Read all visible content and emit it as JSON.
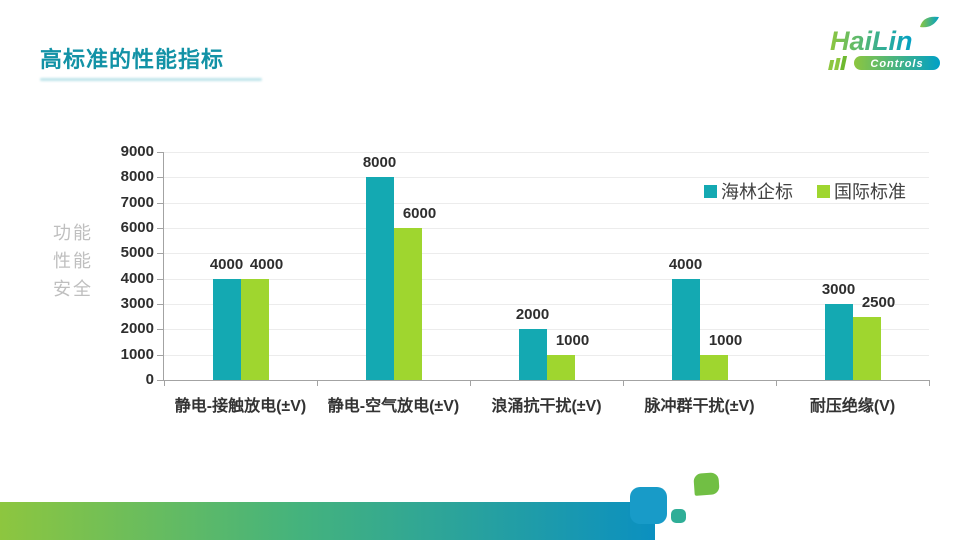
{
  "slide": {
    "title": "高标准的性能指标",
    "accent_color": "#1292a6"
  },
  "logo": {
    "brand": "HaiLin",
    "sub": "Controls",
    "green": "#8dc63f",
    "blue": "#00a0c6"
  },
  "chart_data": {
    "type": "bar",
    "title": "",
    "categories": [
      "静电-接触放电(±V)",
      "静电-空气放电(±V)",
      "浪涌抗干扰(±V)",
      "脉冲群干扰(±V)",
      "耐压绝缘(V)"
    ],
    "series": [
      {
        "name": "海林企标",
        "color": "#14a9b2",
        "values": [
          4000,
          8000,
          2000,
          4000,
          3000
        ]
      },
      {
        "name": "国际标准",
        "color": "#9fd62f",
        "values": [
          4000,
          6000,
          1000,
          1000,
          2500
        ]
      }
    ],
    "y_axis_title_lines": [
      "功能",
      "性能",
      "安全"
    ],
    "xlabel": "",
    "ylabel": "",
    "ylim": [
      0,
      9000
    ],
    "ytick_step": 1000,
    "grid": true,
    "legend_position": "upper-right",
    "data_labels": true
  }
}
